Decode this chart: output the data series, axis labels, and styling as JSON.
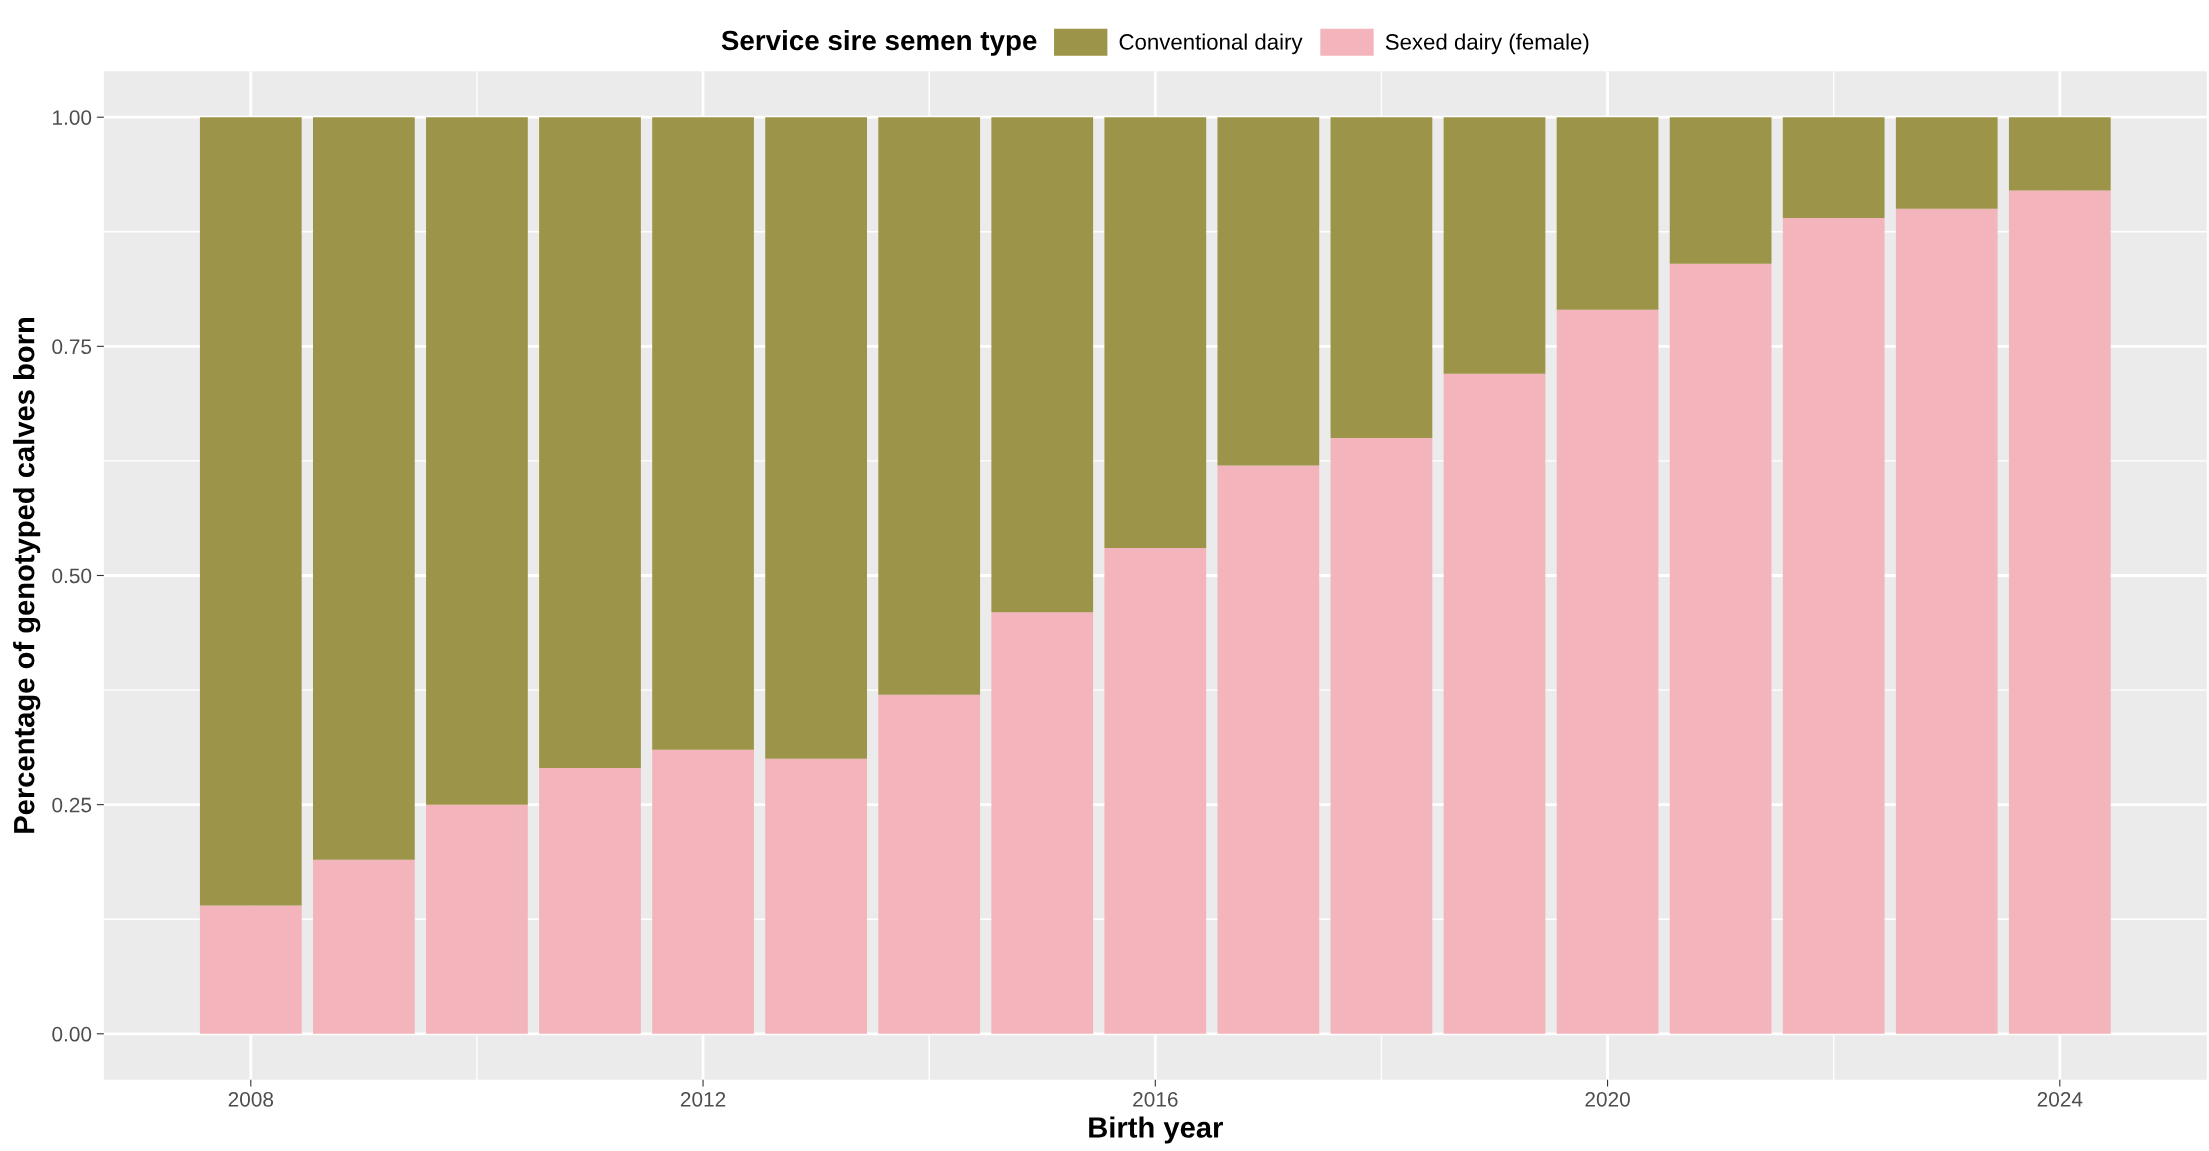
{
  "chart_data": {
    "type": "bar",
    "stacked": true,
    "xlabel": "Birth year",
    "ylabel": "Percentage of genotyped calves born",
    "legend_title": "Service sire semen type",
    "legend": "top",
    "x": [
      2008,
      2009,
      2010,
      2011,
      2012,
      2013,
      2014,
      2015,
      2016,
      2017,
      2018,
      2019,
      2020,
      2021,
      2022,
      2023,
      2024
    ],
    "series": [
      {
        "name": "Sexed dairy (female)",
        "color": "#f4b4bc",
        "values": [
          0.14,
          0.19,
          0.25,
          0.29,
          0.31,
          0.3,
          0.37,
          0.46,
          0.53,
          0.62,
          0.65,
          0.72,
          0.79,
          0.84,
          0.89,
          0.9,
          0.92
        ]
      },
      {
        "name": "Conventional dairy",
        "color": "#9c9549",
        "values": [
          0.86,
          0.81,
          0.75,
          0.71,
          0.69,
          0.7,
          0.63,
          0.54,
          0.47,
          0.38,
          0.35,
          0.28,
          0.21,
          0.16,
          0.11,
          0.1,
          0.08
        ]
      }
    ],
    "xlim": [
      2006.7,
      2025.3
    ],
    "xticks": [
      2008,
      2012,
      2016,
      2020,
      2024
    ],
    "ylim": [
      -0.05,
      1.05
    ],
    "yticks": [
      {
        "value": 0,
        "label": "0.00"
      },
      {
        "value": 0.25,
        "label": "0.25"
      },
      {
        "value": 0.5,
        "label": "0.50"
      },
      {
        "value": 0.75,
        "label": "0.75"
      },
      {
        "value": 1,
        "label": "1.00"
      }
    ],
    "grid": true
  }
}
